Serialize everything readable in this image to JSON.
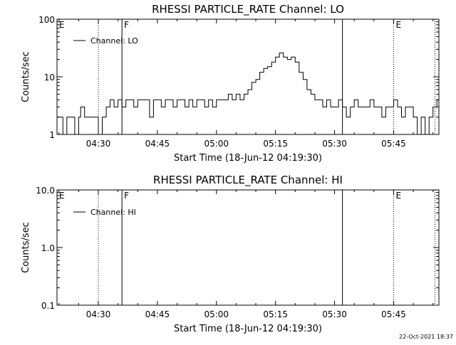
{
  "footer": {
    "timestamp": "22-Oct-2021 18:37"
  },
  "chart_data": [
    {
      "type": "line",
      "title": "RHESSI PARTICLE_RATE Channel: LO",
      "xlabel": "Start Time (18-Jun-12 04:19:30)",
      "ylabel": "Counts/sec",
      "yscale": "log",
      "ylim": [
        1,
        100
      ],
      "xlim": [
        "04:19:30",
        "05:56:30"
      ],
      "x_ticks": [
        "04:30",
        "04:45",
        "05:00",
        "05:15",
        "05:30",
        "05:45"
      ],
      "y_ticks": [
        "1",
        "10",
        "100"
      ],
      "legend": {
        "label": "Channel: LO",
        "placement": "top-left"
      },
      "markers": [
        {
          "time": "04:30:00",
          "style": "dotted",
          "label": ""
        },
        {
          "time": "04:36:00",
          "style": "solid",
          "label": "F"
        },
        {
          "time": "05:32:00",
          "style": "solid",
          "label": ""
        },
        {
          "time": "05:45:00",
          "style": "dotted",
          "label": "E"
        },
        {
          "time": "05:55:30",
          "style": "dotted",
          "label": ""
        }
      ],
      "corner_labels": [
        "E"
      ],
      "series": [
        {
          "x": [
            "04:19:30",
            "04:21:00",
            "04:22:00",
            "04:23:00",
            "04:24:00",
            "04:25:00",
            "04:25:30",
            "04:26:30",
            "04:27:00",
            "04:28:00",
            "04:29:00",
            "04:30:00",
            "04:31:00",
            "04:32:00",
            "04:33:00",
            "04:34:00",
            "04:35:00",
            "04:36:00",
            "04:37:00",
            "04:38:00",
            "04:39:00",
            "04:40:00",
            "04:41:00",
            "04:42:00",
            "04:43:00",
            "04:44:00",
            "04:45:00",
            "04:46:00",
            "04:47:00",
            "04:48:00",
            "04:49:00",
            "04:50:00",
            "04:51:00",
            "04:52:00",
            "04:53:00",
            "04:54:00",
            "04:55:00",
            "04:56:00",
            "04:57:00",
            "04:58:00",
            "04:59:00",
            "05:00:00",
            "05:01:00",
            "05:02:00",
            "05:03:00",
            "05:04:00",
            "05:05:00",
            "05:06:00",
            "05:07:00",
            "05:08:00",
            "05:09:00",
            "05:10:00",
            "05:11:00",
            "05:12:00",
            "05:13:00",
            "05:14:00",
            "05:15:00",
            "05:16:00",
            "05:17:00",
            "05:18:00",
            "05:19:00",
            "05:20:00",
            "05:21:00",
            "05:22:00",
            "05:23:00",
            "05:24:00",
            "05:25:00",
            "05:26:00",
            "05:27:00",
            "05:28:00",
            "05:29:00",
            "05:30:00",
            "05:31:00",
            "05:32:00",
            "05:33:00",
            "05:34:00",
            "05:35:00",
            "05:36:00",
            "05:37:00",
            "05:38:00",
            "05:39:00",
            "05:40:00",
            "05:41:00",
            "05:42:00",
            "05:43:00",
            "05:44:00",
            "05:45:00",
            "05:46:00",
            "05:47:00",
            "05:48:00",
            "05:49:00",
            "05:50:00",
            "05:51:00",
            "05:52:00",
            "05:53:00",
            "05:54:00",
            "05:55:00",
            "05:56:00"
          ],
          "values": [
            2,
            1,
            2,
            2,
            1,
            2,
            3,
            2,
            2,
            2,
            2,
            1,
            2,
            3,
            4,
            3,
            4,
            3,
            4,
            4,
            3,
            4,
            4,
            4,
            2,
            4,
            4,
            3,
            4,
            4,
            3,
            4,
            4,
            3,
            4,
            3,
            4,
            4,
            3,
            4,
            3,
            4,
            4,
            4,
            5,
            4,
            5,
            4,
            5,
            6,
            8,
            9,
            12,
            14,
            15,
            18,
            22,
            26,
            22,
            20,
            22,
            18,
            12,
            9,
            6,
            5,
            4,
            4,
            3,
            4,
            3,
            3,
            4,
            3,
            2,
            3,
            4,
            3,
            3,
            3,
            4,
            3,
            3,
            2,
            3,
            3,
            4,
            3,
            2,
            3,
            3,
            2,
            1,
            2,
            1,
            2,
            3,
            4
          ]
        }
      ]
    },
    {
      "type": "line",
      "title": "RHESSI PARTICLE_RATE Channel: HI",
      "xlabel": "Start Time (18-Jun-12 04:19:30)",
      "ylabel": "Counts/sec",
      "yscale": "log",
      "ylim": [
        0.1,
        10
      ],
      "xlim": [
        "04:19:30",
        "05:56:30"
      ],
      "x_ticks": [
        "04:30",
        "04:45",
        "05:00",
        "05:15",
        "05:30",
        "05:45"
      ],
      "y_ticks": [
        "0.1",
        "1.0",
        "10.0"
      ],
      "legend": {
        "label": "Channel: HI",
        "placement": "top-left"
      },
      "markers": [
        {
          "time": "04:30:00",
          "style": "dotted",
          "label": ""
        },
        {
          "time": "04:36:00",
          "style": "solid",
          "label": "F"
        },
        {
          "time": "05:32:00",
          "style": "solid",
          "label": ""
        },
        {
          "time": "05:45:00",
          "style": "dotted",
          "label": "E"
        },
        {
          "time": "05:55:30",
          "style": "dotted",
          "label": ""
        }
      ],
      "corner_labels": [
        "E"
      ],
      "series": []
    }
  ]
}
